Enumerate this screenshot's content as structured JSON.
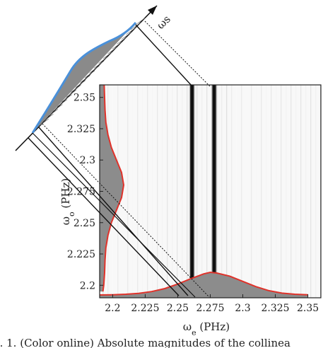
{
  "chart_data": [
    {
      "type": "heatmap",
      "title": "",
      "xlabel": "ωe (PHz)",
      "ylabel": "ωo (PHz)",
      "xlim": [
        2.19,
        2.36
      ],
      "ylim": [
        2.19,
        2.36
      ],
      "xticks": [
        "2.2",
        "2.225",
        "2.25",
        "2.275",
        "2.3",
        "2.325",
        "2.35"
      ],
      "yticks": [
        "2.2",
        "2.225",
        "2.25",
        "2.275",
        "2.3",
        "2.325",
        "2.35"
      ],
      "bright_columns": [
        2.261,
        2.278
      ],
      "grid": false
    },
    {
      "type": "line",
      "name": "bottom marginal (red)",
      "x": [
        2.19,
        2.2,
        2.21,
        2.22,
        2.23,
        2.24,
        2.25,
        2.26,
        2.27,
        2.275,
        2.28,
        2.29,
        2.3,
        2.31,
        2.32,
        2.33,
        2.34,
        2.35
      ],
      "values": [
        0.0,
        0.01,
        0.03,
        0.07,
        0.15,
        0.28,
        0.48,
        0.72,
        0.93,
        1.0,
        0.97,
        0.83,
        0.6,
        0.37,
        0.19,
        0.08,
        0.03,
        0.01
      ]
    },
    {
      "type": "line",
      "name": "left marginal (red)",
      "x": [
        2.195,
        2.2,
        2.21,
        2.22,
        2.23,
        2.24,
        2.25,
        2.26,
        2.27,
        2.28,
        2.29,
        2.3,
        2.31,
        2.32,
        2.33,
        2.34,
        2.35,
        2.36
      ],
      "values": [
        0.02,
        0.06,
        0.1,
        0.12,
        0.16,
        0.26,
        0.42,
        0.66,
        0.9,
        1.0,
        0.9,
        0.66,
        0.42,
        0.26,
        0.16,
        0.12,
        0.1,
        0.08
      ]
    }
  ],
  "omega_s_label": "ωs",
  "caption": "g. 1.   (Color online) Absolute magnitudes of the collinea"
}
